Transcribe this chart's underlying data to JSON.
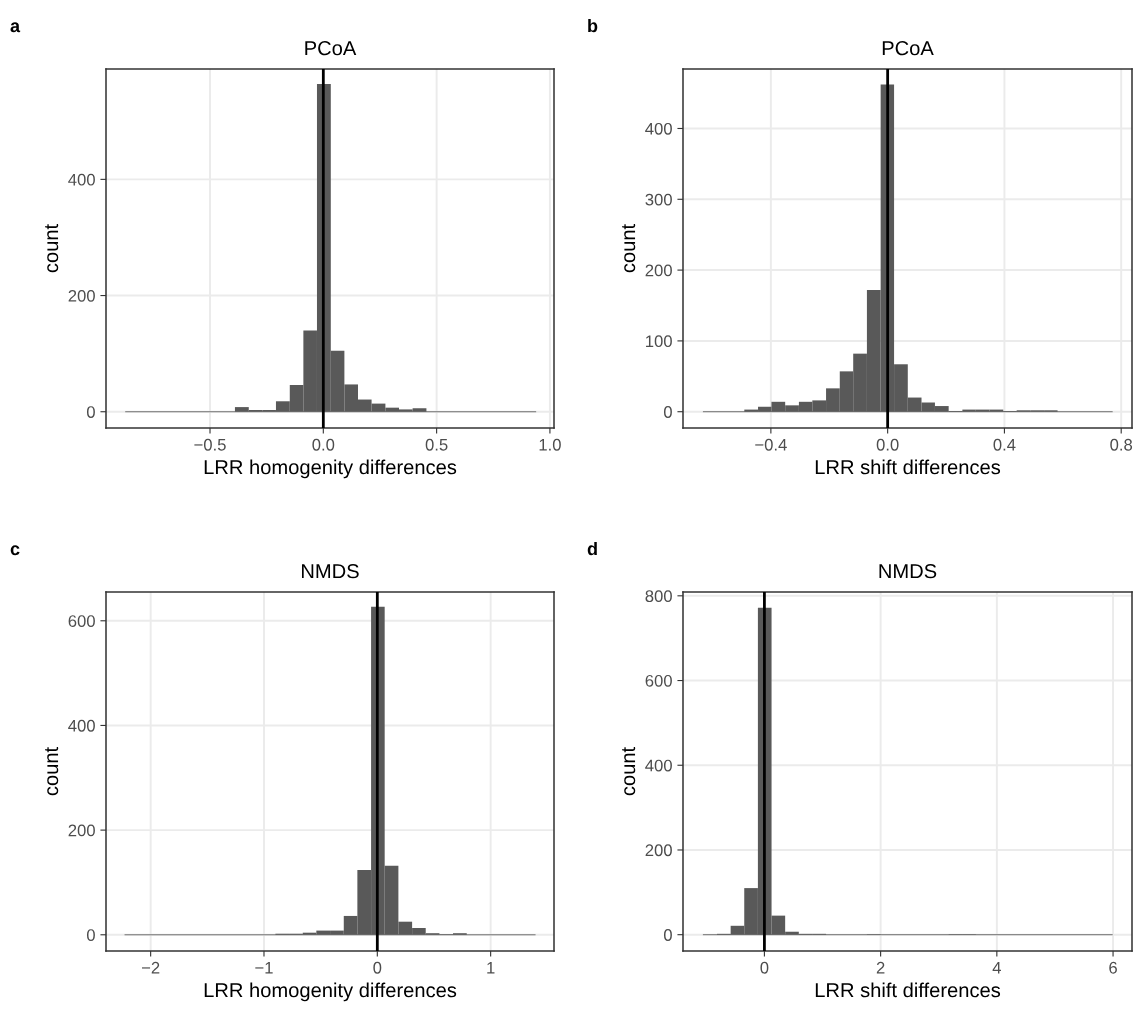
{
  "chart_data": [
    {
      "type": "histogram",
      "title": "PCoA",
      "xlabel": "LRR homogenity differences",
      "ylabel": "count",
      "annotations": [
        "a"
      ],
      "color": "#595959",
      "bins": [
        -0.872,
        -0.812,
        -0.751,
        -0.691,
        -0.631,
        -0.57,
        -0.51,
        -0.45,
        -0.39,
        -0.329,
        -0.269,
        -0.209,
        -0.148,
        -0.088,
        -0.028,
        0.033,
        0.093,
        0.153,
        0.213,
        0.274,
        0.334,
        0.394,
        0.455,
        0.515,
        0.575,
        0.636,
        0.696,
        0.756,
        0.816,
        0.877,
        0.937
      ],
      "values": [
        0,
        0,
        0,
        0,
        0,
        0,
        0,
        0,
        8,
        3,
        3,
        18,
        46,
        140,
        564,
        105,
        47,
        21,
        14,
        7,
        4,
        6,
        0,
        0,
        0,
        0,
        0,
        0,
        0,
        0
      ],
      "xlim": [
        -0.959,
        1.018
      ],
      "ylim": [
        -28,
        590
      ],
      "xticks": [
        {
          "value": -0.5,
          "label": "−0.5"
        },
        {
          "value": 0,
          "label": "0.0"
        },
        {
          "value": 0.5,
          "label": "0.5"
        },
        {
          "value": 1.0,
          "label": "1.0"
        }
      ],
      "yticks": [
        0,
        200,
        400
      ],
      "grid": true,
      "ref_lines": [
        {
          "axis": "x",
          "value": 0,
          "color": "#000000"
        }
      ]
    },
    {
      "type": "histogram",
      "title": "PCoA",
      "xlabel": "LRR shift differences",
      "ylabel": "count",
      "annotations": [
        "b"
      ],
      "color": "#595959",
      "bins": [
        -0.631,
        -0.584,
        -0.538,
        -0.491,
        -0.444,
        -0.398,
        -0.351,
        -0.304,
        -0.258,
        -0.211,
        -0.164,
        -0.118,
        -0.071,
        -0.024,
        0.022,
        0.069,
        0.116,
        0.162,
        0.209,
        0.256,
        0.302,
        0.349,
        0.396,
        0.442,
        0.489,
        0.536,
        0.582,
        0.629,
        0.676,
        0.722,
        0.769
      ],
      "values": [
        0,
        0,
        0,
        3,
        7,
        14,
        9,
        14,
        16,
        33,
        57,
        82,
        172,
        462,
        67,
        20,
        13,
        8,
        1,
        3,
        3,
        3,
        1,
        2,
        2,
        2,
        0,
        0,
        0,
        0
      ],
      "xlim": [
        -0.701,
        0.837
      ],
      "ylim": [
        -23,
        484
      ],
      "xticks": [
        {
          "value": -0.4,
          "label": "−0.4"
        },
        {
          "value": 0,
          "label": "0.0"
        },
        {
          "value": 0.4,
          "label": "0.4"
        },
        {
          "value": 0.8,
          "label": "0.8"
        }
      ],
      "yticks": [
        0,
        100,
        200,
        300,
        400
      ],
      "grid": true,
      "ref_lines": [
        {
          "axis": "x",
          "value": 0,
          "color": "#000000"
        }
      ]
    },
    {
      "type": "histogram",
      "title": "NMDS",
      "xlabel": "LRR homogenity differences",
      "ylabel": "count",
      "annotations": [
        "c"
      ],
      "color": "#595959",
      "bins": [
        -2.226,
        -2.105,
        -1.985,
        -1.864,
        -1.744,
        -1.623,
        -1.502,
        -1.382,
        -1.261,
        -1.141,
        -1.02,
        -0.899,
        -0.779,
        -0.658,
        -0.538,
        -0.417,
        -0.296,
        -0.176,
        -0.055,
        0.065,
        0.186,
        0.307,
        0.427,
        0.548,
        0.668,
        0.789,
        0.91,
        1.03,
        1.151,
        1.271,
        1.392
      ],
      "values": [
        0,
        0,
        0,
        0,
        0,
        0,
        0,
        0,
        0,
        0,
        0,
        2,
        2,
        4,
        8,
        8,
        36,
        124,
        627,
        132,
        25,
        13,
        3,
        1,
        3,
        0,
        0,
        0,
        0,
        0
      ],
      "xlim": [
        -2.394,
        1.559
      ],
      "ylim": [
        -31,
        655
      ],
      "xticks": [
        {
          "value": -2,
          "label": "−2"
        },
        {
          "value": -1,
          "label": "−1"
        },
        0,
        1
      ],
      "yticks": [
        0,
        200,
        400,
        600
      ],
      "grid": true,
      "ref_lines": [
        {
          "axis": "x",
          "value": 0,
          "color": "#000000"
        }
      ]
    },
    {
      "type": "histogram",
      "title": "NMDS",
      "xlabel": "LRR shift differences",
      "ylabel": "count",
      "annotations": [
        "d"
      ],
      "color": "#595959",
      "bins": [
        -1.05,
        -0.816,
        -0.581,
        -0.347,
        -0.112,
        0.123,
        0.357,
        0.592,
        0.826,
        1.061,
        1.295,
        1.53,
        1.764,
        1.999,
        2.233,
        2.468,
        2.702,
        2.937,
        3.171,
        3.406,
        3.64,
        3.875,
        4.109,
        4.344,
        4.578,
        4.813,
        5.047,
        5.282,
        5.516,
        5.751,
        5.985
      ],
      "values": [
        0,
        2,
        21,
        110,
        772,
        45,
        7,
        2,
        2,
        0,
        0,
        0,
        1,
        0,
        0,
        0,
        0,
        0,
        1,
        1,
        0,
        0,
        0,
        0,
        0,
        0,
        0,
        0,
        0,
        0
      ],
      "xlim": [
        -1.401,
        6.326
      ],
      "ylim": [
        -38.5,
        809
      ],
      "xticks": [
        0,
        2,
        4,
        6
      ],
      "yticks": [
        0,
        200,
        400,
        600,
        800
      ],
      "grid": true,
      "ref_lines": [
        {
          "axis": "x",
          "value": 0,
          "color": "#000000"
        }
      ]
    }
  ]
}
